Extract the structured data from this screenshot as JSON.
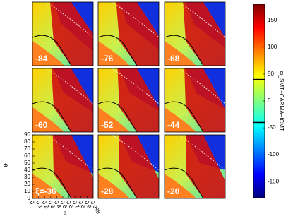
{
  "chart_data": {
    "type": "heatmap-grid",
    "panels": [
      "-84",
      "-76",
      "-68",
      "-60",
      "-52",
      "-44",
      "ξ=-36",
      "-28",
      "-20"
    ],
    "xlabel": "a",
    "ylabel": "Φ",
    "xlim": [
      0,
      1
    ],
    "xticks": [
      0,
      0.1,
      0.2,
      0.3,
      0.4,
      0.5,
      0.6,
      0.7,
      0.8,
      0.9,
      0.998
    ],
    "ylim": [
      0,
      90
    ],
    "yticks": [
      0,
      10,
      20,
      30,
      40,
      50,
      60,
      70,
      80,
      90
    ],
    "colorbar": {
      "label": "Φ_SMT−CARMA−ICMT",
      "clim": [
        -180,
        180
      ],
      "ticks": [
        -150,
        -100,
        -50,
        0,
        50,
        100,
        150
      ],
      "contour_levels": [
        -40,
        40
      ]
    }
  }
}
